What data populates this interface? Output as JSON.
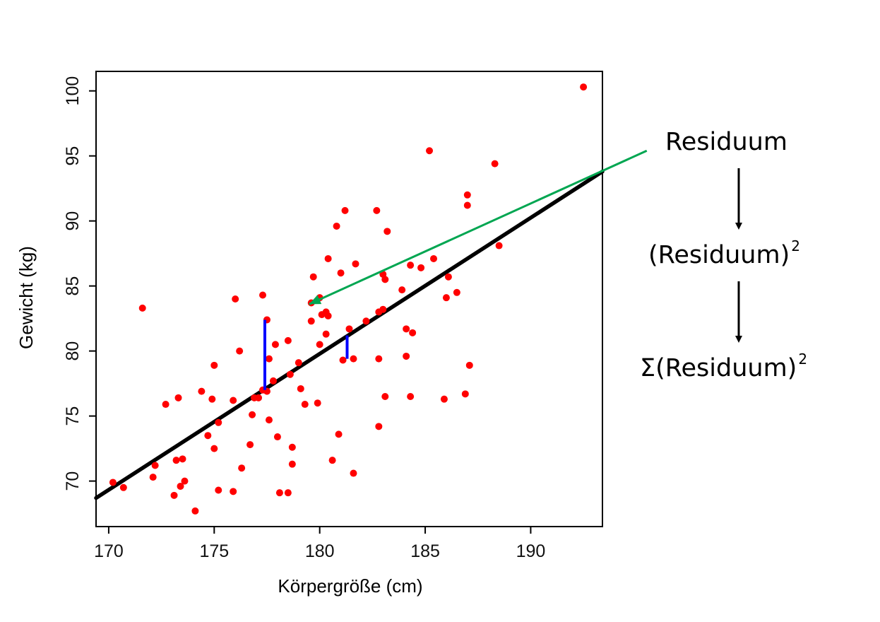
{
  "chart_data": {
    "type": "scatter",
    "xlabel": "Körpergröße (cm)",
    "ylabel": "Gewicht (kg)",
    "xlim": [
      169.4,
      193.4
    ],
    "ylim": [
      66.5,
      101.5
    ],
    "xticks": [
      170,
      175,
      180,
      185,
      190
    ],
    "yticks": [
      70,
      75,
      80,
      85,
      90,
      95,
      100
    ],
    "xtick_labels": [
      "170",
      "175",
      "180",
      "185",
      "190"
    ],
    "ytick_labels": [
      "70",
      "75",
      "80",
      "85",
      "90",
      "95",
      "100"
    ],
    "grid": false,
    "legend": "none",
    "points_color": "#ff0000",
    "regression_color": "#000000",
    "residual_color": "#0000ff",
    "arrow_color": "#00a651",
    "points": [
      [
        170.2,
        69.9
      ],
      [
        170.7,
        69.5
      ],
      [
        171.6,
        83.3
      ],
      [
        172.1,
        70.3
      ],
      [
        172.2,
        71.2
      ],
      [
        172.7,
        75.9
      ],
      [
        173.1,
        68.9
      ],
      [
        173.3,
        76.4
      ],
      [
        173.2,
        71.6
      ],
      [
        173.5,
        71.7
      ],
      [
        173.4,
        69.6
      ],
      [
        173.6,
        70.0
      ],
      [
        174.1,
        67.7
      ],
      [
        174.4,
        76.9
      ],
      [
        174.7,
        73.5
      ],
      [
        174.9,
        76.3
      ],
      [
        175.0,
        72.5
      ],
      [
        175.0,
        78.9
      ],
      [
        175.2,
        69.3
      ],
      [
        175.2,
        74.5
      ],
      [
        175.9,
        69.2
      ],
      [
        175.9,
        76.2
      ],
      [
        176.0,
        84.0
      ],
      [
        176.2,
        80.0
      ],
      [
        176.3,
        71.0
      ],
      [
        176.7,
        72.8
      ],
      [
        176.8,
        75.1
      ],
      [
        176.9,
        76.4
      ],
      [
        177.1,
        76.4
      ],
      [
        177.3,
        84.3
      ],
      [
        177.3,
        77.0
      ],
      [
        177.5,
        76.9
      ],
      [
        177.5,
        82.4
      ],
      [
        177.6,
        74.7
      ],
      [
        177.6,
        79.4
      ],
      [
        177.8,
        77.7
      ],
      [
        177.9,
        80.5
      ],
      [
        178.0,
        73.4
      ],
      [
        178.1,
        69.1
      ],
      [
        178.5,
        69.1
      ],
      [
        178.5,
        80.8
      ],
      [
        178.6,
        78.2
      ],
      [
        178.7,
        72.6
      ],
      [
        178.7,
        71.3
      ],
      [
        179.0,
        79.1
      ],
      [
        179.1,
        77.1
      ],
      [
        179.3,
        75.9
      ],
      [
        179.6,
        82.3
      ],
      [
        179.6,
        83.7
      ],
      [
        179.7,
        85.7
      ],
      [
        179.9,
        76.0
      ],
      [
        180.0,
        84.1
      ],
      [
        180.0,
        80.5
      ],
      [
        180.1,
        82.8
      ],
      [
        180.3,
        81.3
      ],
      [
        180.3,
        83.0
      ],
      [
        180.4,
        82.7
      ],
      [
        180.4,
        87.1
      ],
      [
        180.6,
        71.6
      ],
      [
        180.8,
        89.6
      ],
      [
        180.9,
        73.6
      ],
      [
        181.0,
        86.0
      ],
      [
        181.1,
        79.3
      ],
      [
        181.2,
        90.8
      ],
      [
        181.4,
        81.7
      ],
      [
        181.6,
        70.6
      ],
      [
        181.6,
        79.4
      ],
      [
        181.7,
        86.7
      ],
      [
        182.2,
        82.3
      ],
      [
        182.7,
        90.8
      ],
      [
        182.8,
        79.4
      ],
      [
        182.8,
        74.2
      ],
      [
        182.8,
        83.0
      ],
      [
        183.0,
        85.9
      ],
      [
        183.1,
        85.5
      ],
      [
        183.0,
        83.2
      ],
      [
        183.1,
        76.5
      ],
      [
        183.2,
        89.2
      ],
      [
        183.9,
        84.7
      ],
      [
        184.1,
        81.7
      ],
      [
        184.1,
        79.6
      ],
      [
        184.3,
        76.5
      ],
      [
        184.3,
        86.6
      ],
      [
        184.4,
        81.4
      ],
      [
        184.8,
        86.4
      ],
      [
        185.2,
        95.4
      ],
      [
        185.4,
        87.1
      ],
      [
        185.9,
        76.3
      ],
      [
        186.0,
        84.1
      ],
      [
        186.1,
        85.7
      ],
      [
        186.5,
        84.5
      ],
      [
        186.9,
        76.7
      ],
      [
        187.0,
        92.0
      ],
      [
        187.0,
        91.2
      ],
      [
        187.1,
        78.9
      ],
      [
        188.3,
        94.4
      ],
      [
        188.5,
        88.1
      ],
      [
        192.5,
        100.3
      ]
    ],
    "regression_line": {
      "from": [
        169.4,
        68.7
      ],
      "to": [
        193.4,
        93.8
      ]
    },
    "residuals": [
      {
        "x": 177.4,
        "y_from": 77.0,
        "y_to": 82.4
      },
      {
        "x": 181.3,
        "y_from": 79.4,
        "y_to": 81.2
      }
    ],
    "arrow": {
      "from_x": 195.5,
      "from_y": 95.4,
      "to_x": 179.5,
      "to_y": 83.6
    }
  },
  "annotations": {
    "residuum": "Residuum",
    "squared_base": "(Residuum)",
    "squared_exp": "2",
    "sum_base": "Σ(Residuum)",
    "sum_exp": "2"
  }
}
